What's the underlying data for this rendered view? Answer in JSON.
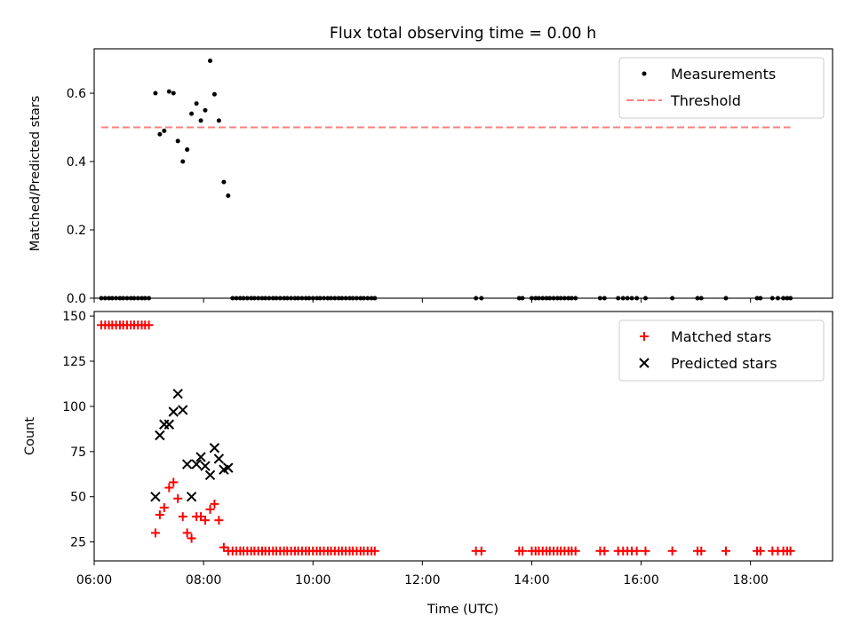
{
  "figure": {
    "title": "Flux total observing time = 0.00 h"
  },
  "colors": {
    "measurement": "#000000",
    "threshold": "#ff7f7f",
    "matched": "#ff0000",
    "predicted": "#000000",
    "axes": "#000000"
  },
  "chart_data": [
    {
      "type": "scatter",
      "ylabel": "Matched/Predicted stars",
      "xlabel": "",
      "xlim": [
        6.0,
        19.5
      ],
      "ylim": [
        0.0,
        0.73
      ],
      "yticks": [
        "0.0",
        "0.2",
        "0.4",
        "0.6"
      ],
      "ytick_values": [
        0.0,
        0.2,
        0.4,
        0.6
      ],
      "legend_position": "top-right",
      "legend": [
        {
          "label": "Measurements",
          "marker": "dot"
        },
        {
          "label": "Threshold",
          "marker": "dashed-line"
        }
      ],
      "series": [
        {
          "name": "Measurements",
          "x": [
            6.13,
            6.2,
            6.27,
            6.33,
            6.4,
            6.47,
            6.53,
            6.6,
            6.67,
            6.73,
            6.8,
            6.87,
            6.93,
            7.0,
            7.12,
            7.2,
            7.28,
            7.37,
            7.45,
            7.53,
            7.62,
            7.7,
            7.78,
            7.87,
            7.95,
            8.03,
            8.12,
            8.2,
            8.28,
            8.37,
            8.45,
            8.53,
            8.6,
            8.67,
            8.73,
            8.8,
            8.87,
            8.93,
            9.0,
            9.07,
            9.13,
            9.2,
            9.27,
            9.33,
            9.4,
            9.47,
            9.53,
            9.6,
            9.67,
            9.73,
            9.8,
            9.87,
            9.93,
            10.0,
            10.07,
            10.13,
            10.2,
            10.27,
            10.33,
            10.4,
            10.47,
            10.53,
            10.6,
            10.67,
            10.73,
            10.8,
            10.87,
            10.93,
            11.0,
            11.07,
            11.13,
            12.98,
            13.08,
            13.77,
            13.83,
            14.0,
            14.07,
            14.13,
            14.2,
            14.27,
            14.33,
            14.4,
            14.47,
            14.53,
            14.6,
            14.67,
            14.73,
            14.8,
            15.25,
            15.33,
            15.58,
            15.67,
            15.75,
            15.83,
            15.92,
            16.08,
            16.57,
            17.03,
            17.1,
            17.55,
            18.12,
            18.18,
            18.4,
            18.5,
            18.6,
            18.67,
            18.73
          ],
          "y": [
            0,
            0,
            0,
            0,
            0,
            0,
            0,
            0,
            0,
            0,
            0,
            0,
            0,
            0,
            0.6,
            0.48,
            0.49,
            0.605,
            0.6,
            0.46,
            0.4,
            0.435,
            0.54,
            0.57,
            0.52,
            0.55,
            0.695,
            0.597,
            0.52,
            0.34,
            0.3,
            0,
            0,
            0,
            0,
            0,
            0,
            0,
            0,
            0,
            0,
            0,
            0,
            0,
            0,
            0,
            0,
            0,
            0,
            0,
            0,
            0,
            0,
            0,
            0,
            0,
            0,
            0,
            0,
            0,
            0,
            0,
            0,
            0,
            0,
            0,
            0,
            0,
            0,
            0,
            0,
            0,
            0,
            0,
            0,
            0,
            0,
            0,
            0,
            0,
            0,
            0,
            0,
            0,
            0,
            0,
            0,
            0,
            0,
            0,
            0,
            0,
            0,
            0,
            0,
            0,
            0,
            0,
            0,
            0,
            0,
            0,
            0,
            0,
            0,
            0,
            0
          ]
        },
        {
          "name": "Threshold",
          "x": [
            6.13,
            18.73
          ],
          "y": [
            0.5,
            0.5
          ]
        }
      ]
    },
    {
      "type": "scatter",
      "ylabel": "Count",
      "xlabel": "Time (UTC)",
      "xlim": [
        6.0,
        19.5
      ],
      "ylim": [
        14.5,
        152.5
      ],
      "yticks": [
        "25",
        "50",
        "75",
        "100",
        "125",
        "150"
      ],
      "ytick_values": [
        25,
        50,
        75,
        100,
        125,
        150
      ],
      "xticks": [
        "06:00",
        "08:00",
        "10:00",
        "12:00",
        "14:00",
        "16:00",
        "18:00"
      ],
      "xtick_values": [
        6,
        8,
        10,
        12,
        14,
        16,
        18
      ],
      "legend_position": "top-right",
      "legend": [
        {
          "label": "Matched stars",
          "marker": "plus"
        },
        {
          "label": "Predicted stars",
          "marker": "x"
        }
      ],
      "series": [
        {
          "name": "Matched stars",
          "x": [
            6.13,
            6.2,
            6.27,
            6.33,
            6.4,
            6.47,
            6.53,
            6.6,
            6.67,
            6.73,
            6.8,
            6.87,
            6.93,
            7.0,
            7.12,
            7.2,
            7.28,
            7.37,
            7.45,
            7.53,
            7.62,
            7.7,
            7.78,
            7.87,
            7.95,
            8.03,
            8.12,
            8.2,
            8.28,
            8.37,
            8.45,
            8.53,
            8.6,
            8.67,
            8.73,
            8.8,
            8.87,
            8.93,
            9.0,
            9.07,
            9.13,
            9.2,
            9.27,
            9.33,
            9.4,
            9.47,
            9.53,
            9.6,
            9.67,
            9.73,
            9.8,
            9.87,
            9.93,
            10.0,
            10.07,
            10.13,
            10.2,
            10.27,
            10.33,
            10.4,
            10.47,
            10.53,
            10.6,
            10.67,
            10.73,
            10.8,
            10.87,
            10.93,
            11.0,
            11.07,
            11.13,
            12.98,
            13.08,
            13.77,
            13.83,
            14.0,
            14.07,
            14.13,
            14.2,
            14.27,
            14.33,
            14.4,
            14.47,
            14.53,
            14.6,
            14.67,
            14.73,
            14.8,
            15.25,
            15.33,
            15.58,
            15.67,
            15.75,
            15.83,
            15.92,
            16.08,
            16.57,
            17.03,
            17.1,
            17.55,
            18.12,
            18.18,
            18.4,
            18.5,
            18.6,
            18.67,
            18.73
          ],
          "y": [
            145,
            145,
            145,
            145,
            145,
            145,
            145,
            145,
            145,
            145,
            145,
            145,
            145,
            145,
            30,
            40,
            44,
            55,
            58,
            49,
            39,
            30,
            27,
            39,
            39,
            37,
            43,
            46,
            37,
            22,
            20,
            20,
            20,
            20,
            20,
            20,
            20,
            20,
            20,
            20,
            20,
            20,
            20,
            20,
            20,
            20,
            20,
            20,
            20,
            20,
            20,
            20,
            20,
            20,
            20,
            20,
            20,
            20,
            20,
            20,
            20,
            20,
            20,
            20,
            20,
            20,
            20,
            20,
            20,
            20,
            20,
            20,
            20,
            20,
            20,
            20,
            20,
            20,
            20,
            20,
            20,
            20,
            20,
            20,
            20,
            20,
            20,
            20,
            20,
            20,
            20,
            20,
            20,
            20,
            20,
            20,
            20,
            20,
            20,
            20,
            20,
            20,
            20,
            20,
            20,
            20,
            20
          ]
        },
        {
          "name": "Predicted stars",
          "x": [
            7.12,
            7.2,
            7.28,
            7.37,
            7.45,
            7.53,
            7.62,
            7.7,
            7.78,
            7.87,
            7.95,
            8.03,
            8.12,
            8.2,
            8.28,
            8.37,
            8.45
          ],
          "y": [
            50,
            84,
            90,
            90,
            97,
            107,
            98,
            68,
            50,
            68,
            72,
            67,
            62,
            77,
            71,
            65,
            66
          ]
        }
      ]
    }
  ]
}
